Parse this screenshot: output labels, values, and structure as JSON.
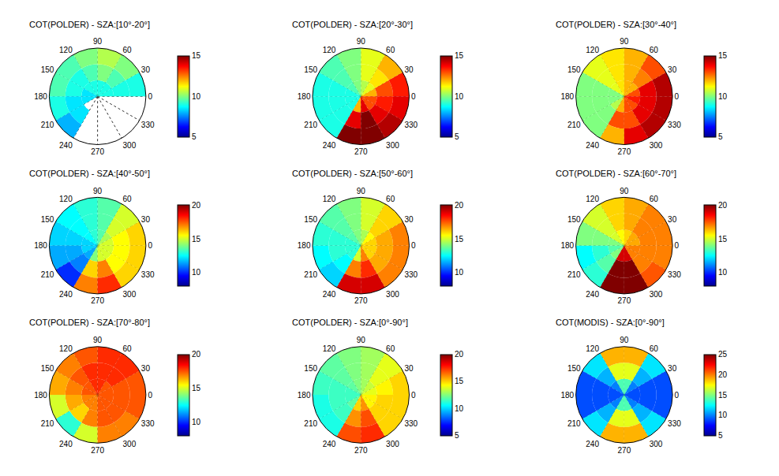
{
  "chart_data": [
    {
      "type": "polar_heatmap",
      "title": "COT(POLDER) - SZA:[10°-20°]",
      "color": "jet",
      "tick_labels": "x",
      "theta_bins": [
        0,
        30,
        60,
        90,
        120,
        150,
        180,
        210,
        240,
        270,
        300,
        330,
        360
      ],
      "r_bins": [
        0,
        20,
        40,
        60
      ],
      "rlim": [
        0,
        60
      ],
      "thetaticks": [
        0,
        30,
        60,
        90,
        120,
        150,
        180,
        210,
        240,
        270,
        300,
        330
      ],
      "colorbar": {
        "range": [
          5,
          15
        ],
        "ticks": [
          5,
          10,
          15
        ]
      },
      "cells": [
        [
          9,
          9,
          9
        ],
        [
          9,
          9.5,
          10
        ],
        [
          9,
          10,
          10.5
        ],
        [
          9,
          9.5,
          10
        ],
        [
          9,
          9,
          9.5
        ],
        [
          8.5,
          9,
          9.5
        ],
        [
          8.5,
          8.5,
          9
        ],
        [
          null,
          8.5,
          8
        ],
        [
          null,
          null,
          null
        ],
        [
          null,
          null,
          null
        ],
        [
          null,
          null,
          null
        ],
        [
          null,
          null,
          null
        ]
      ]
    },
    {
      "type": "polar_heatmap",
      "title": "COT(POLDER) - SZA:[20°-30°]",
      "color": "jet",
      "tick_labels": "x",
      "theta_bins": [
        0,
        30,
        60,
        90,
        120,
        150,
        180,
        210,
        240,
        270,
        300,
        330,
        360
      ],
      "r_bins": [
        0,
        20,
        40,
        60
      ],
      "rlim": [
        0,
        60
      ],
      "thetaticks": [
        0,
        30,
        60,
        90,
        120,
        150,
        180,
        210,
        240,
        270,
        300,
        330
      ],
      "colorbar": {
        "range": [
          5,
          15
        ],
        "ticks": [
          5,
          10,
          15
        ]
      },
      "cells": [
        [
          12,
          13,
          13.5
        ],
        [
          11,
          11.5,
          12
        ],
        [
          10.5,
          11,
          11
        ],
        [
          10,
          10,
          10
        ],
        [
          9.5,
          9.5,
          9.5
        ],
        [
          9,
          9,
          9
        ],
        [
          9,
          9,
          9
        ],
        [
          9,
          9,
          9
        ],
        [
          12,
          14,
          15
        ],
        [
          14,
          15,
          15
        ],
        [
          13,
          14,
          14.5
        ],
        [
          13,
          13.5,
          14
        ]
      ]
    },
    {
      "type": "polar_heatmap",
      "title": "COT(POLDER) - SZA:[30°-40°]",
      "color": "jet",
      "tick_labels": "x",
      "theta_bins": [
        0,
        30,
        60,
        90,
        120,
        150,
        180,
        210,
        240,
        270,
        300,
        330,
        360
      ],
      "r_bins": [
        0,
        20,
        40,
        60
      ],
      "rlim": [
        0,
        60
      ],
      "thetaticks": [
        0,
        30,
        60,
        90,
        120,
        150,
        180,
        210,
        240,
        270,
        300,
        330
      ],
      "colorbar": {
        "range": [
          5,
          15
        ],
        "ticks": [
          5,
          10,
          15
        ]
      },
      "cells": [
        [
          13,
          14,
          14.5
        ],
        [
          12,
          12.5,
          13
        ],
        [
          12,
          12,
          12
        ],
        [
          11.5,
          11.5,
          11.5
        ],
        [
          11,
          11,
          11
        ],
        [
          10,
          10,
          10
        ],
        [
          10,
          10,
          10
        ],
        [
          10.5,
          10,
          10
        ],
        [
          12,
          13,
          12
        ],
        [
          13,
          13,
          14
        ],
        [
          13,
          14,
          14.5
        ],
        [
          13.5,
          14,
          14.5
        ]
      ]
    },
    {
      "type": "polar_heatmap",
      "title": "COT(POLDER) - SZA:[40°-50°]",
      "color": "jet",
      "tick_labels": "x",
      "theta_bins": [
        0,
        30,
        60,
        90,
        120,
        150,
        180,
        210,
        240,
        270,
        300,
        330,
        360
      ],
      "r_bins": [
        0,
        20,
        40,
        60
      ],
      "rlim": [
        0,
        60
      ],
      "thetaticks": [
        0,
        30,
        60,
        90,
        120,
        150,
        180,
        210,
        240,
        270,
        300,
        330
      ],
      "colorbar": {
        "range": [
          8,
          20
        ],
        "ticks": [
          10,
          15,
          20
        ]
      },
      "cells": [
        [
          15,
          15.5,
          16
        ],
        [
          14.5,
          15,
          15
        ],
        [
          13.5,
          13.5,
          13.5
        ],
        [
          13,
          13,
          13
        ],
        [
          12.5,
          12.5,
          12.5
        ],
        [
          12,
          12,
          12
        ],
        [
          12,
          11.5,
          11.5
        ],
        [
          11.5,
          11,
          10
        ],
        [
          14,
          16,
          17
        ],
        [
          15,
          17,
          18
        ],
        [
          15,
          15.5,
          16
        ],
        [
          15,
          15.5,
          16
        ]
      ]
    },
    {
      "type": "polar_heatmap",
      "title": "COT(POLDER) - SZA:[50°-60°]",
      "color": "jet",
      "tick_labels": "x",
      "theta_bins": [
        0,
        30,
        60,
        90,
        120,
        150,
        180,
        210,
        240,
        270,
        300,
        330,
        360
      ],
      "r_bins": [
        0,
        20,
        40,
        60
      ],
      "rlim": [
        0,
        60
      ],
      "thetaticks": [
        0,
        30,
        60,
        90,
        120,
        150,
        180,
        210,
        240,
        270,
        300,
        330
      ],
      "colorbar": {
        "range": [
          8,
          20
        ],
        "ticks": [
          10,
          15,
          20
        ]
      },
      "cells": [
        [
          16,
          16.5,
          17
        ],
        [
          15.5,
          16,
          16
        ],
        [
          14.5,
          15,
          15
        ],
        [
          14,
          14,
          14
        ],
        [
          13.5,
          13.5,
          13.5
        ],
        [
          13,
          13,
          13
        ],
        [
          13,
          13,
          12.5
        ],
        [
          13,
          12.5,
          12
        ],
        [
          15,
          17,
          19
        ],
        [
          17,
          18,
          19
        ],
        [
          16,
          16.5,
          17
        ],
        [
          16,
          16.5,
          17
        ]
      ]
    },
    {
      "type": "polar_heatmap",
      "title": "COT(POLDER) - SZA:[60°-70°]",
      "color": "jet",
      "tick_labels": "x",
      "theta_bins": [
        0,
        30,
        60,
        90,
        120,
        150,
        180,
        210,
        240,
        270,
        300,
        330,
        360
      ],
      "r_bins": [
        0,
        20,
        40,
        60
      ],
      "rlim": [
        0,
        60
      ],
      "thetaticks": [
        0,
        30,
        60,
        90,
        120,
        150,
        180,
        210,
        240,
        270,
        300,
        330
      ],
      "colorbar": {
        "range": [
          8,
          20
        ],
        "ticks": [
          10,
          15,
          20
        ]
      },
      "cells": [
        [
          16.5,
          17,
          17
        ],
        [
          16.5,
          17,
          17
        ],
        [
          16,
          16.5,
          16.5
        ],
        [
          15.5,
          16,
          16
        ],
        [
          15,
          15,
          15
        ],
        [
          14,
          14,
          14
        ],
        [
          13.5,
          13,
          12.5
        ],
        [
          14,
          13.5,
          13
        ],
        [
          19,
          20,
          20
        ],
        [
          19,
          20,
          20
        ],
        [
          17,
          17,
          17.5
        ],
        [
          17,
          17,
          17
        ]
      ]
    },
    {
      "type": "polar_heatmap",
      "title": "COT(POLDER) - SZA:[70°-80°]",
      "color": "jet",
      "tick_labels": "x",
      "theta_bins": [
        0,
        30,
        60,
        90,
        120,
        150,
        180,
        210,
        240,
        270,
        300,
        330,
        360
      ],
      "r_bins": [
        0,
        20,
        40,
        60
      ],
      "rlim": [
        0,
        60
      ],
      "thetaticks": [
        0,
        30,
        60,
        90,
        120,
        150,
        180,
        210,
        240,
        270,
        300,
        330
      ],
      "colorbar": {
        "range": [
          8,
          20
        ],
        "ticks": [
          10,
          15,
          20
        ]
      },
      "cells": [
        [
          17.5,
          17.5,
          17.5
        ],
        [
          17.5,
          18,
          18
        ],
        [
          18,
          18,
          18
        ],
        [
          18,
          18,
          17.5
        ],
        [
          17.5,
          17.5,
          17
        ],
        [
          17.5,
          17,
          16.5
        ],
        [
          17,
          16.5,
          15
        ],
        [
          17,
          16,
          13
        ],
        [
          17,
          17,
          15
        ],
        [
          17.5,
          17.5,
          17
        ],
        [
          17.5,
          17.5,
          17
        ],
        [
          17.5,
          17.5,
          17.5
        ]
      ]
    },
    {
      "type": "polar_heatmap",
      "title": "COT(POLDER) - SZA:[0°-90°]",
      "color": "jet",
      "tick_labels": "x",
      "theta_bins": [
        0,
        30,
        60,
        90,
        120,
        150,
        180,
        210,
        240,
        270,
        300,
        330,
        360
      ],
      "r_bins": [
        0,
        20,
        40,
        60
      ],
      "rlim": [
        0,
        60
      ],
      "thetaticks": [
        0,
        30,
        60,
        90,
        120,
        150,
        180,
        210,
        240,
        270,
        300,
        330
      ],
      "colorbar": {
        "range": [
          5,
          20
        ],
        "ticks": [
          5,
          10,
          15,
          20
        ]
      },
      "cells": [
        [
          14,
          14.5,
          15
        ],
        [
          13.5,
          14,
          14
        ],
        [
          13,
          13,
          13
        ],
        [
          12.5,
          12.5,
          12.5
        ],
        [
          12,
          12,
          12
        ],
        [
          11.5,
          11.5,
          11.5
        ],
        [
          11.5,
          11.5,
          11
        ],
        [
          12,
          11.5,
          11
        ],
        [
          15,
          16,
          17
        ],
        [
          16,
          17,
          17.5
        ],
        [
          14.5,
          15,
          15
        ],
        [
          14.5,
          15,
          15
        ]
      ]
    },
    {
      "type": "polar_heatmap",
      "title": "COT(MODIS) - SZA:[0°-90°]",
      "color": "jet",
      "tick_labels": "x",
      "theta_bins": [
        0,
        30,
        60,
        90,
        120,
        150,
        180,
        210,
        240,
        270,
        300,
        330,
        360
      ],
      "r_bins": [
        0,
        20,
        40,
        60
      ],
      "rlim": [
        0,
        60
      ],
      "thetaticks": [
        0,
        30,
        60,
        90,
        120,
        150,
        180,
        210,
        240,
        270,
        300,
        330
      ],
      "colorbar": {
        "range": [
          5,
          25
        ],
        "ticks": [
          5,
          10,
          15,
          20,
          25
        ]
      },
      "cells": [
        [
          9,
          9,
          9
        ],
        [
          10,
          11,
          12
        ],
        [
          14,
          17,
          19
        ],
        [
          14,
          17,
          19
        ],
        [
          10,
          11,
          12
        ],
        [
          9,
          9,
          9
        ],
        [
          9,
          9,
          9
        ],
        [
          10,
          11,
          12
        ],
        [
          14,
          17,
          19
        ],
        [
          14,
          17,
          19
        ],
        [
          10,
          11,
          12
        ],
        [
          9,
          9,
          9
        ]
      ]
    }
  ]
}
